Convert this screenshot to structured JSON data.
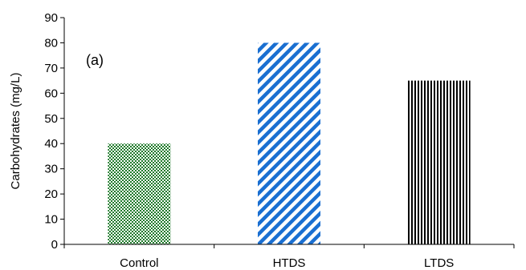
{
  "chart_data": {
    "type": "bar",
    "categories": [
      "Control",
      "HTDS",
      "LTDS"
    ],
    "values": [
      40,
      80,
      65
    ],
    "title": "",
    "xlabel": "",
    "ylabel": "Carbohydrates (mg/L)",
    "ylim": [
      0,
      90
    ],
    "yticks": [
      0,
      10,
      20,
      30,
      40,
      50,
      60,
      70,
      80,
      90
    ],
    "grid": false,
    "legend": "none",
    "annotation": "(a)",
    "bar_styles": [
      {
        "pattern": "checker",
        "color": "#1e7a2a"
      },
      {
        "pattern": "diagonal",
        "color": "#1a6fd1"
      },
      {
        "pattern": "vertical",
        "color": "#000000"
      }
    ]
  }
}
